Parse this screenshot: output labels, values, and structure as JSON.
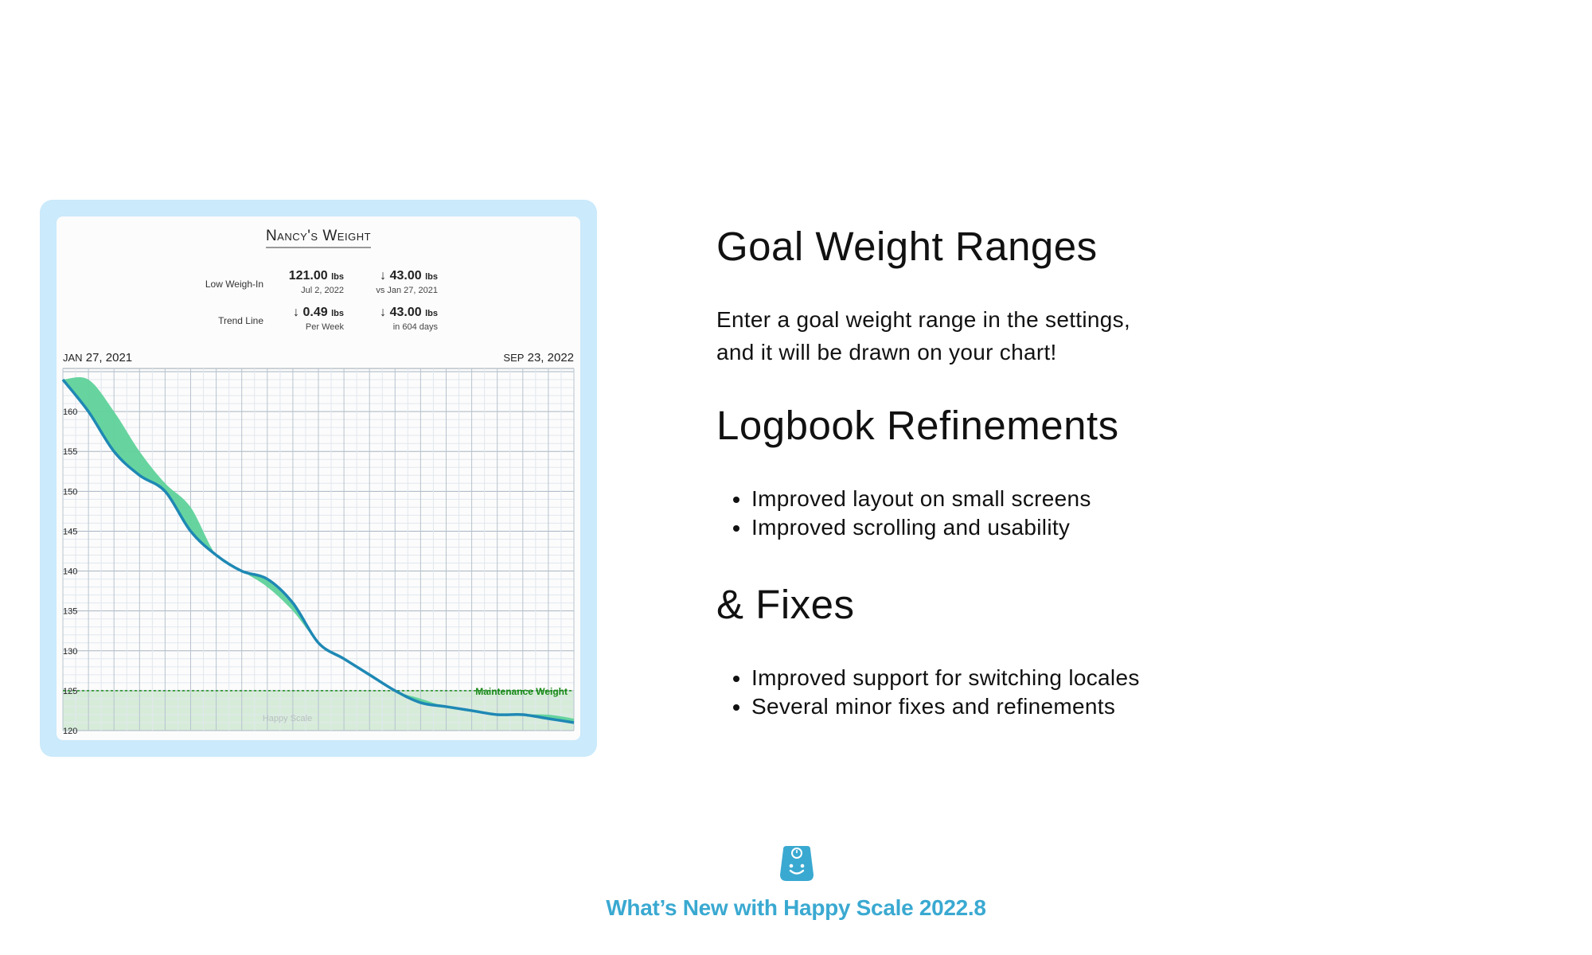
{
  "chart_card": {
    "title": "Nancy's Weight",
    "stats": {
      "low_weigh_in": {
        "label": "Low Weigh-In",
        "value": "121.00",
        "value_unit": "lbs",
        "value_sub": "Jul 2, 2022",
        "change": "↓ 43.00",
        "change_unit": "lbs",
        "change_sub": "vs Jan 27, 2021"
      },
      "trend_line": {
        "label": "Trend Line",
        "value": "↓ 0.49",
        "value_unit": "lbs",
        "value_sub": "Per Week",
        "change": "↓ 43.00",
        "change_unit": "lbs",
        "change_sub": "in 604 days"
      }
    },
    "start_date": {
      "month": "JAN",
      "rest": "27, 2021"
    },
    "end_date": {
      "month": "SEP",
      "rest": "23, 2022"
    },
    "watermark": "Happy Scale",
    "maintenance_label": "Maintenance Weight"
  },
  "chart_data": {
    "type": "line",
    "x": [
      "Jan 27, 2021",
      "",
      "",
      "",
      "",
      "",
      "",
      "",
      "",
      "",
      "",
      "",
      "",
      "",
      "",
      "",
      "",
      "",
      "",
      "",
      "Sep 23, 2022"
    ],
    "y_ticks": [
      120,
      125,
      130,
      135,
      140,
      145,
      150,
      155,
      160
    ],
    "ylim": [
      120,
      165
    ],
    "series": [
      {
        "values": [
          164,
          160,
          155,
          152,
          150,
          145,
          142,
          140,
          139,
          136,
          131,
          129,
          127,
          125,
          123.5,
          123,
          122.5,
          122,
          122,
          121.5,
          121
        ]
      },
      {
        "values": [
          164,
          164,
          160,
          155,
          151,
          148,
          142,
          140,
          138,
          135,
          131,
          129,
          127,
          125,
          124,
          123,
          122.5,
          122,
          122,
          122,
          121.5
        ]
      }
    ],
    "maintenance_weight": 125,
    "goal_range": [
      120,
      125
    ],
    "grid": true,
    "colors": {
      "trend": "#1e88b4",
      "band": "#5fd29a",
      "goal_range": "#d6ecd9",
      "maintenance": "#1a8a1a"
    }
  },
  "features": {
    "goal": {
      "title": "Goal Weight Ranges",
      "body_line1": "Enter a goal weight range in the settings,",
      "body_line2": "and it will be drawn on your chart!"
    },
    "logbook": {
      "title": "Logbook Refinements",
      "items": [
        "Improved layout on small screens",
        "Improved scrolling and usability"
      ]
    },
    "fixes": {
      "title": "& Fixes",
      "items": [
        "Improved support for switching locales",
        "Several minor fixes and refinements"
      ]
    }
  },
  "footer": {
    "icon": "happy-scale-icon",
    "title": "What’s New with Happy Scale 2022.8",
    "accent_color": "#3aa9d1"
  }
}
